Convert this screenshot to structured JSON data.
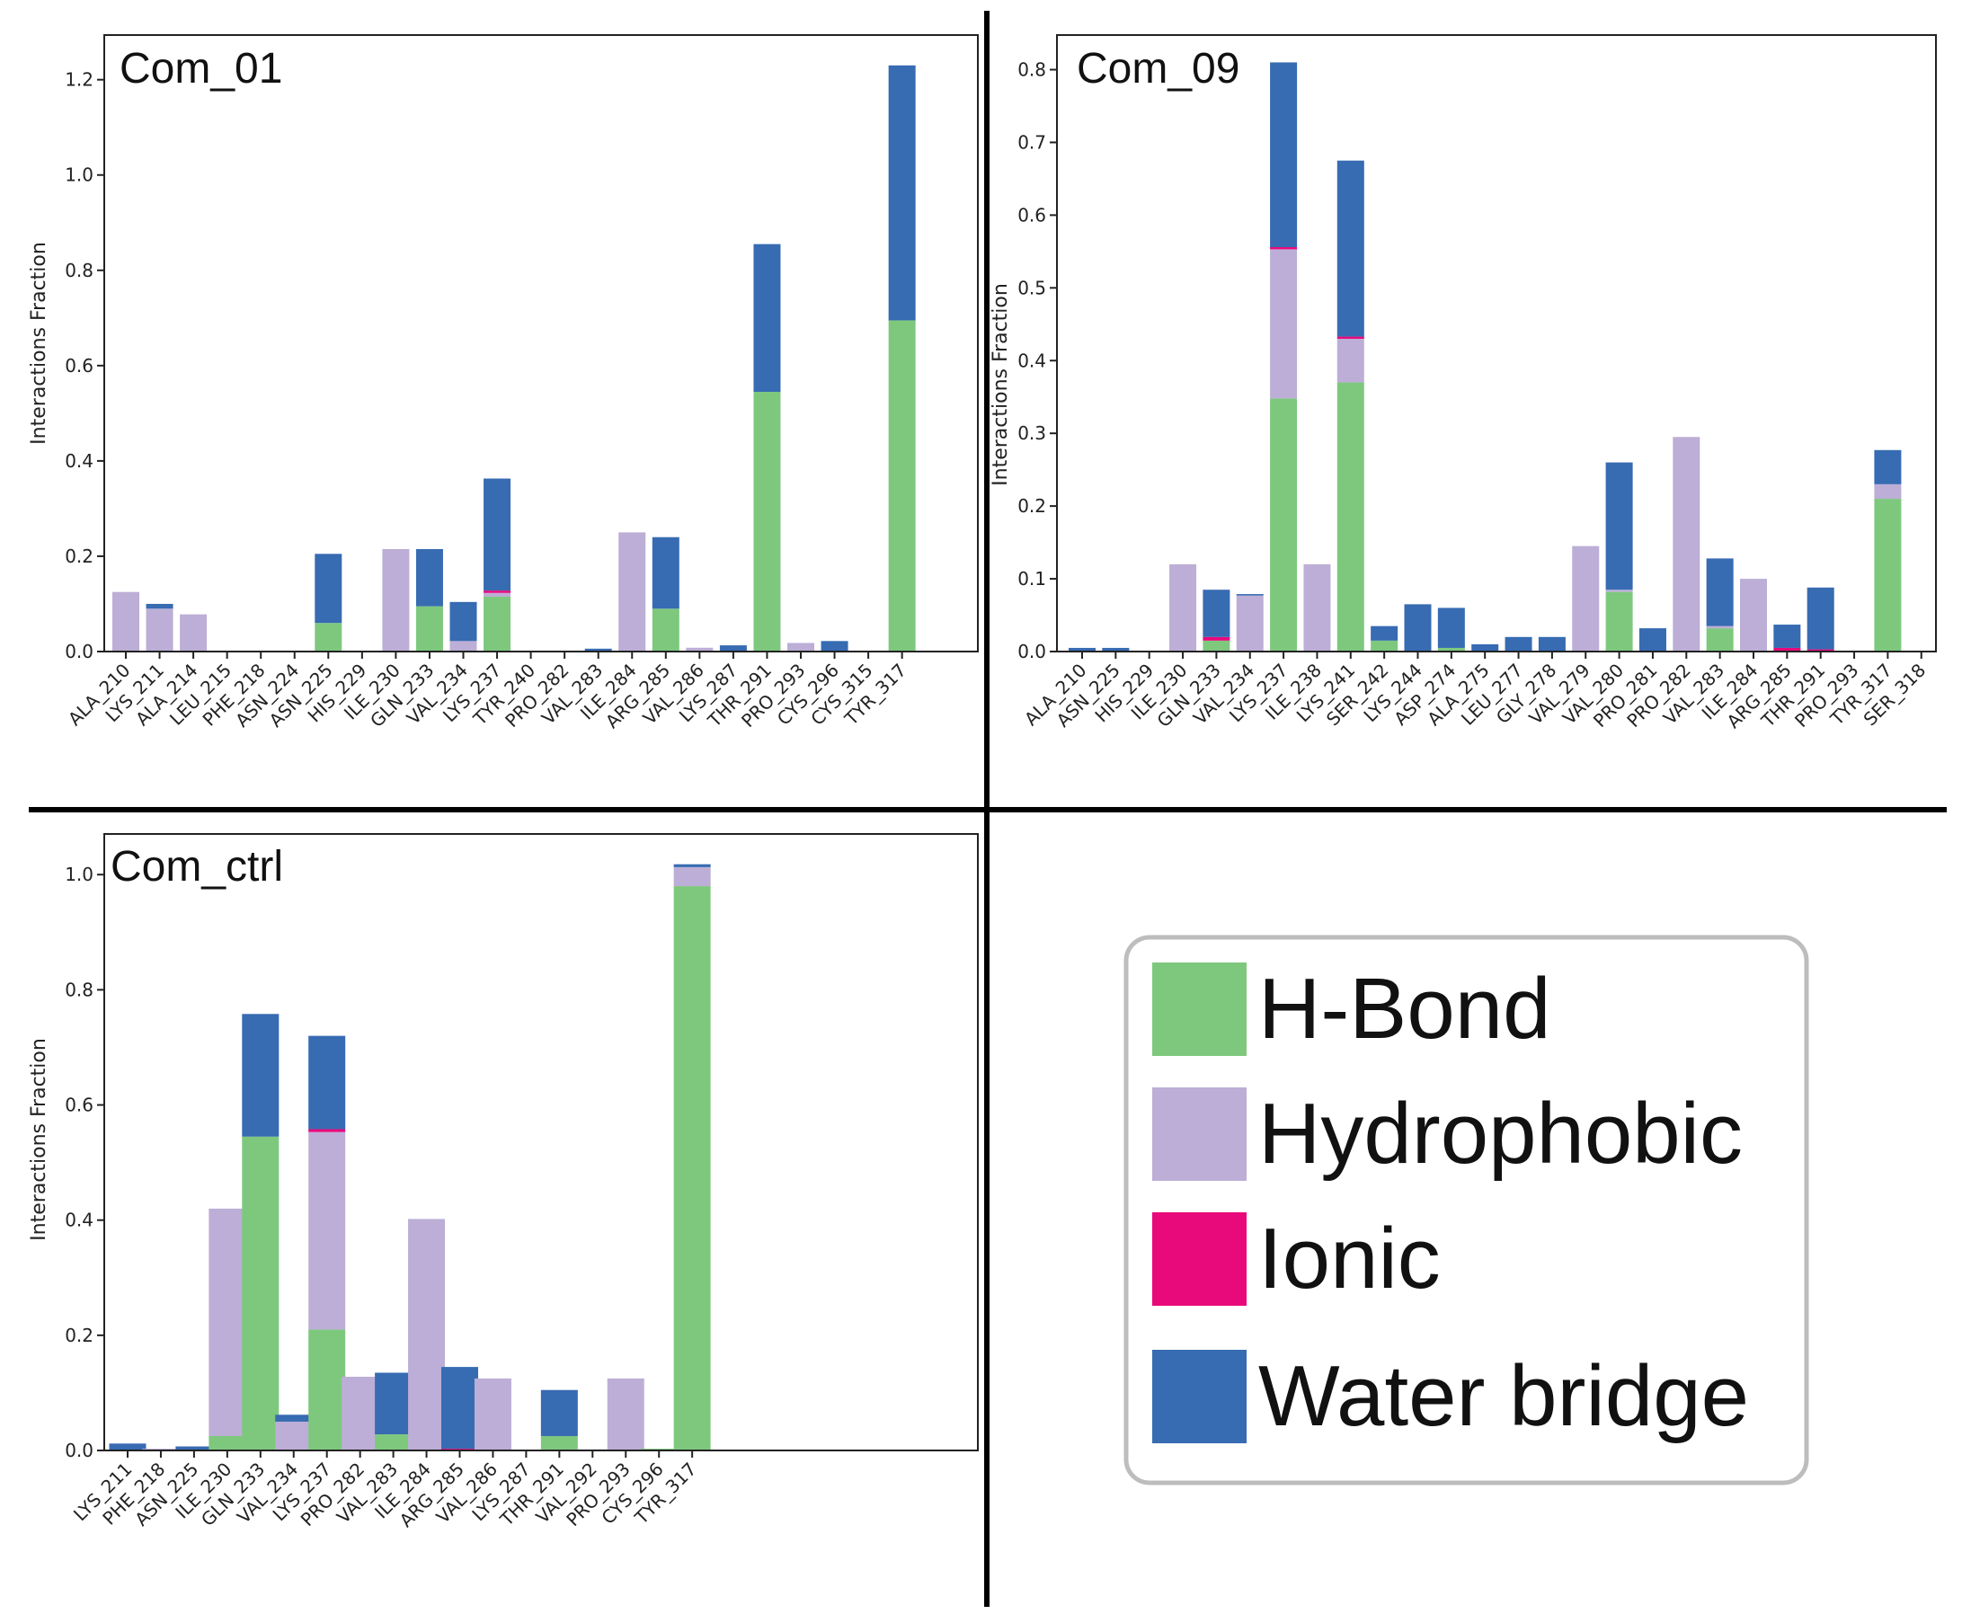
{
  "colors": {
    "hbond": "#7ec87e",
    "hydrophobic": "#bcaed6",
    "ionic": "#e8097b",
    "water": "#376bb2"
  },
  "legend": {
    "items": [
      {
        "label": "H-Bond",
        "color": "#7ec87e"
      },
      {
        "label": "Hydrophobic",
        "color": "#bcaed6"
      },
      {
        "label": "Ionic",
        "color": "#e8097b"
      },
      {
        "label": "Water bridge",
        "color": "#376bb2"
      }
    ]
  },
  "chart_data": [
    {
      "type": "bar",
      "title": "Com_01",
      "ylabel": "Interactions Fraction",
      "ylim": [
        0,
        1.2937
      ],
      "yticks": [
        "0.0",
        "0.2",
        "0.4",
        "0.6",
        "0.8",
        "1.0",
        "1.2"
      ],
      "categories": [
        "ALA_210",
        "LYS_211",
        "ALA_214",
        "LEU_215",
        "PHE_218",
        "ASN_224",
        "ASN_225",
        "HIS_229",
        "ILE_230",
        "GLN_233",
        "VAL_234",
        "LYS_237",
        "TYR_240",
        "PRO_282",
        "VAL_283",
        "ILE_284",
        "ARG_285",
        "VAL_286",
        "LYS_287",
        "THR_291",
        "PRO_293",
        "CYS_296",
        "CYS_315",
        "TYR_317"
      ],
      "series": [
        {
          "name": "H-Bond",
          "values": [
            0,
            0,
            0,
            0,
            0,
            0,
            0.06,
            0,
            0,
            0.095,
            0,
            0.115,
            0,
            0,
            0,
            0,
            0.09,
            0,
            0,
            0.545,
            0,
            0,
            0,
            0.695
          ]
        },
        {
          "name": "Hydrophobic",
          "values": [
            0.125,
            0.09,
            0.078,
            0,
            0,
            0,
            0,
            0,
            0.215,
            0,
            0.022,
            0.008,
            0,
            0,
            0,
            0.25,
            0,
            0.008,
            0,
            0,
            0.018,
            0,
            0,
            0
          ]
        },
        {
          "name": "Ionic",
          "values": [
            0,
            0,
            0,
            0,
            0,
            0,
            0,
            0,
            0,
            0,
            0,
            0.005,
            0,
            0,
            0,
            0,
            0,
            0,
            0,
            0,
            0,
            0,
            0,
            0
          ]
        },
        {
          "name": "Water bridge",
          "values": [
            0,
            0.01,
            0,
            0,
            0,
            0,
            0.145,
            0,
            0,
            0.12,
            0.082,
            0.235,
            0,
            0,
            0.006,
            0,
            0.15,
            0,
            0.013,
            0.31,
            0,
            0.022,
            0,
            0.535
          ]
        }
      ]
    },
    {
      "type": "bar",
      "title": "Com_09",
      "ylabel": "Interactions Fraction",
      "ylim": [
        0,
        0.8476
      ],
      "yticks": [
        "0.0",
        "0.1",
        "0.2",
        "0.3",
        "0.4",
        "0.5",
        "0.6",
        "0.7",
        "0.8"
      ],
      "categories": [
        "ALA_210",
        "ASN_225",
        "HIS_229",
        "ILE_230",
        "GLN_233",
        "VAL_234",
        "LYS_237",
        "ILE_238",
        "LYS_241",
        "SER_242",
        "LYS_244",
        "ASP_274",
        "ALA_275",
        "LEU_277",
        "GLY_278",
        "VAL_279",
        "VAL_280",
        "PRO_281",
        "PRO_282",
        "VAL_283",
        "ILE_284",
        "ARG_285",
        "THR_291",
        "PRO_293",
        "TYR_317",
        "SER_318"
      ],
      "series": [
        {
          "name": "H-Bond",
          "values": [
            0,
            0,
            0,
            0,
            0.015,
            0,
            0.348,
            0,
            0.37,
            0.015,
            0,
            0.005,
            0,
            0,
            0,
            0,
            0.082,
            0,
            0,
            0.032,
            0,
            0,
            0,
            0,
            0.21,
            0
          ]
        },
        {
          "name": "Hydrophobic",
          "values": [
            0,
            0,
            0,
            0.12,
            0,
            0.077,
            0.205,
            0.12,
            0.06,
            0,
            0,
            0,
            0,
            0,
            0,
            0.145,
            0.003,
            0,
            0.295,
            0.003,
            0.1,
            0,
            0,
            0,
            0.02,
            0
          ]
        },
        {
          "name": "Ionic",
          "values": [
            0,
            0,
            0,
            0,
            0.005,
            0,
            0.003,
            0,
            0.003,
            0,
            0,
            0,
            0,
            0,
            0,
            0,
            0,
            0,
            0,
            0,
            0,
            0.005,
            0.003,
            0,
            0,
            0
          ]
        },
        {
          "name": "Water bridge",
          "values": [
            0.005,
            0.005,
            0,
            0,
            0.065,
            0.002,
            0.254,
            0,
            0.242,
            0.02,
            0.065,
            0.055,
            0.01,
            0.02,
            0.02,
            0,
            0.175,
            0.032,
            0,
            0.093,
            0,
            0.032,
            0.085,
            0,
            0.047,
            0
          ]
        }
      ]
    },
    {
      "type": "bar",
      "title": "Com_ctrl",
      "ylabel": "Interactions Fraction",
      "ylim": [
        0,
        1.0706
      ],
      "yticks": [
        "0.0",
        "0.2",
        "0.4",
        "0.6",
        "0.8",
        "1.0"
      ],
      "categories": [
        "LYS_211",
        "PHE_218",
        "ASN_225",
        "ILE_230",
        "GLN_233",
        "VAL_234",
        "LYS_237",
        "PRO_282",
        "VAL_283",
        "ILE_284",
        "ARG_285",
        "VAL_286",
        "LYS_287",
        "THR_291",
        "VAL_292",
        "PRO_293",
        "CYS_296",
        "TYR_317"
      ],
      "series": [
        {
          "name": "H-Bond",
          "values": [
            0,
            0,
            0,
            0.025,
            0.545,
            0,
            0.21,
            0,
            0.028,
            0,
            0,
            0,
            0,
            0.025,
            0,
            0,
            0.003,
            0.98
          ]
        },
        {
          "name": "Hydrophobic",
          "values": [
            0,
            0.003,
            0,
            0.395,
            0,
            0.05,
            0.343,
            0.128,
            0,
            0.402,
            0,
            0.125,
            0,
            0,
            0.002,
            0.125,
            0,
            0.033
          ]
        },
        {
          "name": "Ionic",
          "values": [
            0,
            0,
            0,
            0,
            0,
            0,
            0.005,
            0,
            0,
            0,
            0.003,
            0,
            0,
            0,
            0,
            0,
            0,
            0
          ]
        },
        {
          "name": "Water bridge",
          "values": [
            0.012,
            0,
            0.007,
            0,
            0.213,
            0.012,
            0.162,
            0,
            0.107,
            0,
            0.142,
            0,
            0,
            0.08,
            0,
            0,
            0,
            0.005
          ]
        }
      ]
    }
  ]
}
